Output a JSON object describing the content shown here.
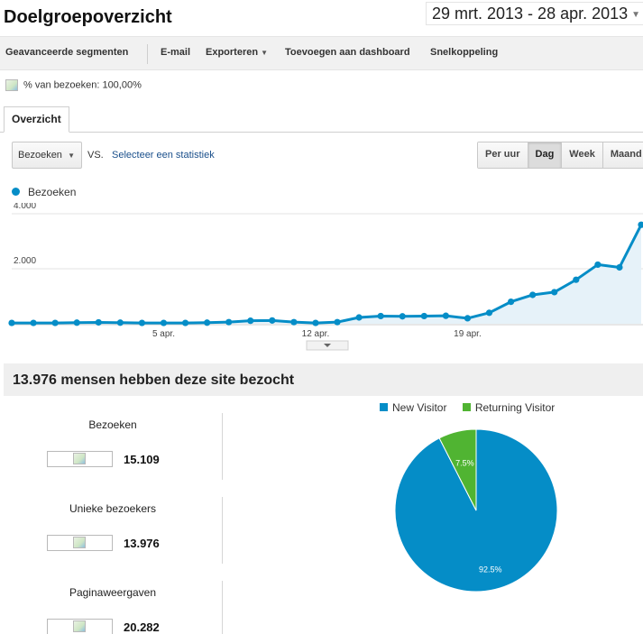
{
  "header": {
    "title": "Doelgroepoverzicht",
    "date_range": "29 mrt. 2013 - 28 apr. 2013"
  },
  "toolbar": {
    "items": [
      "Geavanceerde segmenten",
      "E-mail",
      "Exporteren",
      "Toevoegen aan dashboard",
      "Snelkoppeling"
    ]
  },
  "segment": {
    "text": "% van bezoeken: 100,00%"
  },
  "tabs": {
    "overview": "Overzicht"
  },
  "controls": {
    "metric": "Bezoeken",
    "vs": "VS.",
    "select_stat": "Selecteer een statistiek",
    "granularity": [
      "Per uur",
      "Dag",
      "Week",
      "Maand"
    ],
    "active_granularity": "Dag"
  },
  "colors": {
    "series": "#058dc7",
    "area": "#e6f2f9",
    "new_visitor": "#058dc7",
    "returning_visitor": "#50b432"
  },
  "chart_data": [
    {
      "type": "line",
      "series": [
        {
          "name": "Bezoeken",
          "values": [
            30,
            30,
            30,
            40,
            50,
            40,
            30,
            30,
            30,
            40,
            60,
            110,
            120,
            60,
            30,
            60,
            230,
            280,
            270,
            280,
            290,
            200,
            400,
            800,
            1050,
            1150,
            1600,
            2150,
            2050,
            3600
          ]
        }
      ],
      "x_tick_labels": [
        {
          "index": 7,
          "label": "5 apr."
        },
        {
          "index": 14,
          "label": "12 apr."
        },
        {
          "index": 21,
          "label": "19 apr."
        }
      ],
      "y_ticks": [
        {
          "value": 2000,
          "label": "2.000"
        },
        {
          "value": 4000,
          "label": "4.000"
        }
      ],
      "ylim": [
        0,
        4000
      ],
      "legend": "top-left",
      "grid": true
    },
    {
      "type": "pie",
      "slices": [
        {
          "name": "New Visitor",
          "value": 92.5,
          "label": "92.5%"
        },
        {
          "name": "Returning Visitor",
          "value": 7.5,
          "label": "7.5%"
        }
      ],
      "legend": "top"
    }
  ],
  "summary": {
    "title": "13.976 mensen hebben deze site bezocht",
    "stats": [
      {
        "label": "Bezoeken",
        "value": "15.109"
      },
      {
        "label": "Unieke bezoekers",
        "value": "13.976"
      },
      {
        "label": "Paginaweergaven",
        "value": "20.282"
      }
    ]
  }
}
